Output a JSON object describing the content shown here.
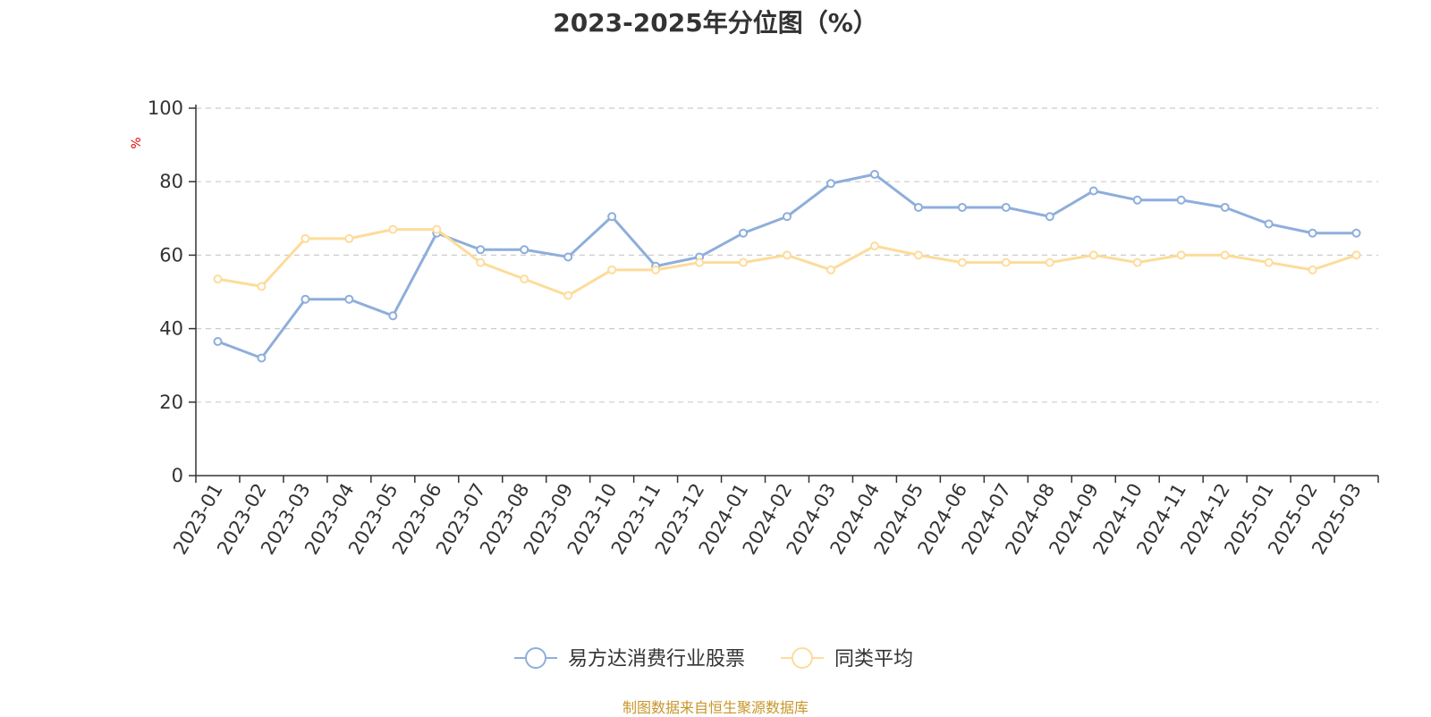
{
  "chart_data": {
    "type": "line",
    "title": "2023-2025年分位图（%）",
    "ylabel": "%",
    "ylim": [
      0,
      100
    ],
    "yticks": [
      "0",
      "20",
      "40",
      "60",
      "80",
      "100"
    ],
    "grid": true,
    "legend_position": "bottom",
    "categories": [
      "2023-01",
      "2023-02",
      "2023-03",
      "2023-04",
      "2023-05",
      "2023-06",
      "2023-07",
      "2023-08",
      "2023-09",
      "2023-10",
      "2023-11",
      "2023-12",
      "2024-01",
      "2024-02",
      "2024-03",
      "2024-04",
      "2024-05",
      "2024-06",
      "2024-07",
      "2024-08",
      "2024-09",
      "2024-10",
      "2024-11",
      "2024-12",
      "2025-01",
      "2025-02",
      "2025-03"
    ],
    "series": [
      {
        "name": "易方达消费行业股票",
        "color": "#8eaedb",
        "values": [
          36.5,
          32,
          48,
          48,
          43.5,
          66,
          61.5,
          61.5,
          59.5,
          70.5,
          57,
          59.5,
          66,
          70.5,
          79.5,
          82,
          73,
          73,
          73,
          70.5,
          77.5,
          75,
          75,
          73,
          68.5,
          66,
          66
        ]
      },
      {
        "name": "同类平均",
        "color": "#fddc9a",
        "values": [
          53.5,
          51.5,
          64.5,
          64.5,
          67,
          67,
          58,
          53.5,
          49,
          56,
          56,
          58,
          58,
          60,
          56,
          62.5,
          60,
          58,
          58,
          58,
          60,
          58,
          60,
          60,
          58,
          56,
          60
        ]
      }
    ]
  },
  "source_text": "制图数据来自恒生聚源数据库"
}
